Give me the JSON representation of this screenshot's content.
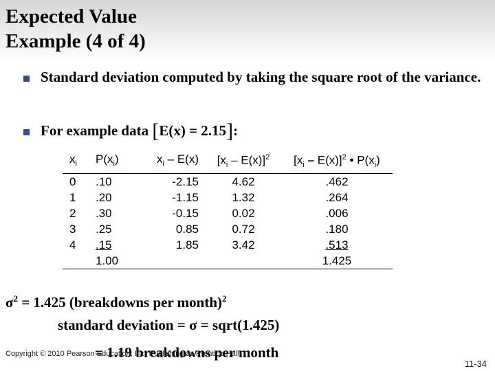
{
  "title": {
    "line1": "Expected Value",
    "line2": "Example (4 of 4)"
  },
  "bullets": [
    {
      "text": "Standard deviation computed by taking the square root of the variance."
    },
    {
      "prefix": "For example data ",
      "open": "[",
      "inner": "E(x) = 2.15",
      "close": "]",
      "suffix": ":"
    }
  ],
  "table": {
    "headers": [
      "xi",
      "P(xi)",
      "xi – E(x)",
      "[xi – E(x)]2",
      "[xi – E(x)]2 • P(xi)"
    ],
    "rows": [
      [
        "0",
        ".10",
        "-2.15",
        "4.62",
        ".462"
      ],
      [
        "1",
        ".20",
        "-1.15",
        "1.32",
        ".264"
      ],
      [
        "2",
        ".30",
        "-0.15",
        "0.02",
        ".006"
      ],
      [
        "3",
        ".25",
        "0.85",
        "0.72",
        ".180"
      ],
      [
        "4",
        ".15",
        "1.85",
        "3.42",
        ".513"
      ]
    ],
    "totals": {
      "p": "1.00",
      "product": "1.425"
    }
  },
  "equations": {
    "variance": {
      "symbol": "σ",
      "exp": "2",
      "text": " = 1.425 (breakdowns per month)",
      "unit_exp": "2"
    },
    "sd": {
      "prefix": "standard deviation = ",
      "symbol": "σ",
      "text": " = sqrt(1.425)"
    },
    "result": "= 1.19 breakdowns per month"
  },
  "footer": {
    "copyright": "Copyright © 2010 Pearson Education, Inc. Publishing as Prentice Hall",
    "page": "11-34"
  }
}
